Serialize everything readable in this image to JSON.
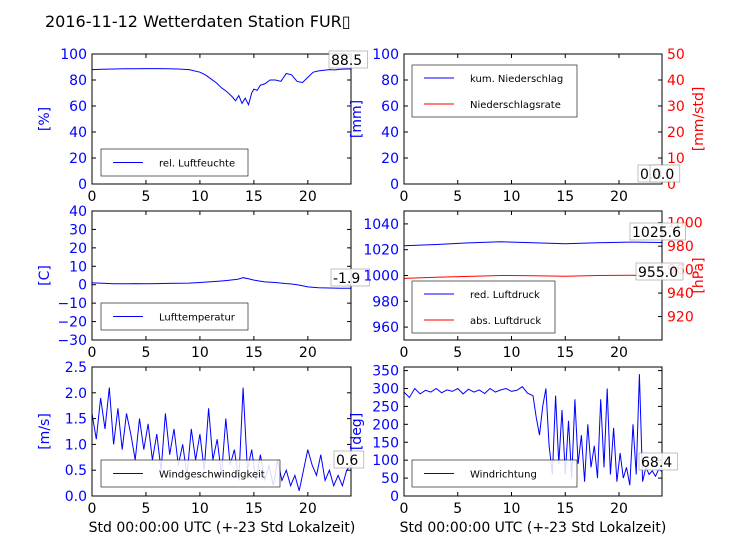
{
  "figure": {
    "title": "2016-11-12 Wetterdaten Station FUR▯",
    "xlabel": "Std 00:00:00 UTC (+-23 Std Lokalzeit)"
  },
  "colors": {
    "primary": "#0000ff",
    "secondary": "#ff0000",
    "axis": "#000000",
    "box_edge": "#999999"
  },
  "chart_data": [
    {
      "id": "humidity",
      "type": "line",
      "xlim": [
        0,
        24
      ],
      "ylim": [
        0,
        100
      ],
      "xticks": [
        "0",
        "5",
        "10",
        "15",
        "20"
      ],
      "yticks": [
        "0",
        "20",
        "40",
        "60",
        "80",
        "100"
      ],
      "ylabel": "[%]",
      "series": [
        {
          "name": "rel. Luftfeuchte",
          "color": "#0000ff",
          "x": [
            0,
            1,
            2,
            3,
            4,
            5,
            6,
            7,
            8,
            9,
            10,
            10.5,
            11,
            11.5,
            12,
            12.5,
            13,
            13.3,
            13.6,
            13.9,
            14.2,
            14.5,
            14.8,
            15,
            15.3,
            15.6,
            16,
            16.5,
            17,
            17.5,
            18,
            18.5,
            19,
            19.5,
            20,
            20.5,
            21,
            21.5,
            22,
            22.5,
            23,
            23.5,
            24
          ],
          "y": [
            88,
            88.3,
            88.5,
            88.6,
            88.7,
            88.8,
            88.8,
            88.7,
            88.5,
            88,
            86,
            84,
            81,
            78,
            74,
            71,
            67,
            64,
            68,
            62,
            66,
            61,
            70,
            73,
            72,
            76,
            77,
            80,
            80,
            79,
            85,
            84,
            79,
            78,
            82,
            86,
            87,
            87.5,
            88,
            87.8,
            88.3,
            88.5,
            88.5
          ]
        }
      ],
      "value_label": "88.5",
      "legend_position": "lower-left"
    },
    {
      "id": "precipitation",
      "type": "line",
      "xlim": [
        0,
        24
      ],
      "ylim": [
        0,
        100
      ],
      "y2lim": [
        0,
        50
      ],
      "xticks": [
        "0",
        "5",
        "10",
        "15",
        "20"
      ],
      "yticks": [
        "0",
        "20",
        "40",
        "60",
        "80",
        "100"
      ],
      "y2ticks": [
        "0",
        "10",
        "20",
        "30",
        "40",
        "50"
      ],
      "ylabel": "[mm]",
      "y2label": "[mm/std]",
      "series": [
        {
          "name": "kum. Niederschlag",
          "color": "#0000ff",
          "axis": "left",
          "x": [
            0,
            24
          ],
          "y": [
            0,
            0
          ]
        },
        {
          "name": "Niederschlagsrate",
          "color": "#ff0000",
          "axis": "right",
          "x": [
            0,
            24
          ],
          "y": [
            0,
            0
          ]
        }
      ],
      "value_labels": [
        "0.0",
        "0.0"
      ],
      "legend_position": "upper-left"
    },
    {
      "id": "temperature",
      "type": "line",
      "xlim": [
        0,
        24
      ],
      "ylim": [
        -30,
        40
      ],
      "xticks": [
        "0",
        "5",
        "10",
        "15",
        "20"
      ],
      "yticks": [
        "−30",
        "−20",
        "−10",
        "0",
        "10",
        "20",
        "30",
        "40"
      ],
      "ylabel": "[C]",
      "series": [
        {
          "name": "Lufttemperatur",
          "color": "#0000ff",
          "x": [
            0,
            1,
            2,
            3,
            4,
            5,
            6,
            7,
            8,
            9,
            10,
            11,
            12,
            12.5,
            13,
            13.5,
            14,
            14.5,
            15,
            15.5,
            16,
            17,
            18,
            18.5,
            19,
            19.5,
            20,
            21,
            22,
            23,
            24
          ],
          "y": [
            1,
            0.8,
            0.5,
            0.5,
            0.6,
            0.5,
            0.6,
            0.7,
            0.8,
            0.9,
            1.2,
            1.6,
            2.0,
            2.3,
            2.6,
            3.0,
            3.8,
            3.2,
            2.5,
            2.0,
            1.5,
            1.2,
            0.6,
            0.4,
            0,
            -0.6,
            -1.2,
            -1.6,
            -1.8,
            -1.9,
            -1.9
          ]
        }
      ],
      "value_label": "-1.9",
      "legend_position": "lower-left"
    },
    {
      "id": "pressure",
      "type": "line",
      "xlim": [
        0,
        24
      ],
      "ylim": [
        950,
        1050
      ],
      "y2lim": [
        900,
        1010
      ],
      "xticks": [
        "0",
        "5",
        "10",
        "15",
        "20"
      ],
      "yticks": [
        "960",
        "980",
        "1000",
        "1020",
        "1040"
      ],
      "y2ticks": [
        "920",
        "940",
        "960",
        "980",
        "1000"
      ],
      "y2label": "[hPa]",
      "series": [
        {
          "name": "red. Luftdruck",
          "color": "#0000ff",
          "axis": "left",
          "x": [
            0,
            3,
            6,
            9,
            12,
            15,
            18,
            21,
            24
          ],
          "y": [
            1023,
            1024,
            1025.3,
            1026.1,
            1025.4,
            1024.6,
            1025.4,
            1025.9,
            1025.6
          ]
        },
        {
          "name": "abs. Luftdruck",
          "color": "#ff0000",
          "axis": "right",
          "x": [
            0,
            3,
            6,
            9,
            12,
            15,
            18,
            21,
            24
          ],
          "y": [
            952.5,
            953.5,
            954.2,
            955.0,
            954.8,
            954.4,
            955.0,
            955.2,
            955.0
          ]
        }
      ],
      "value_labels": [
        "1025.6",
        "955.0"
      ],
      "legend_position": "lower-left"
    },
    {
      "id": "wind_speed",
      "type": "line",
      "xlim": [
        0,
        24
      ],
      "ylim": [
        0,
        2.5
      ],
      "xticks": [
        "0",
        "5",
        "10",
        "15",
        "20"
      ],
      "yticks": [
        "0.0",
        "0.5",
        "1.0",
        "1.5",
        "2.0",
        "2.5"
      ],
      "ylabel": "[m/s]",
      "series": [
        {
          "name": "Windgeschwindigkeit",
          "color": "#0000ff",
          "x": [
            0,
            0.4,
            0.8,
            1.2,
            1.6,
            2.0,
            2.4,
            2.8,
            3.2,
            3.6,
            4.0,
            4.4,
            4.8,
            5.2,
            5.6,
            6.0,
            6.4,
            6.8,
            7.2,
            7.6,
            8.0,
            8.4,
            8.8,
            9.2,
            9.6,
            10.0,
            10.4,
            10.8,
            11.2,
            11.6,
            12.0,
            12.4,
            12.8,
            13.2,
            13.6,
            14.0,
            14.4,
            14.8,
            15.2,
            15.6,
            16.0,
            16.4,
            16.8,
            17.2,
            17.6,
            18.0,
            18.4,
            18.8,
            19.2,
            19.6,
            20.0,
            20.4,
            20.8,
            21.2,
            21.6,
            22.0,
            22.4,
            22.8,
            23.2,
            23.6,
            24.0
          ],
          "y": [
            1.6,
            1.1,
            1.9,
            1.3,
            2.1,
            1.0,
            1.7,
            0.9,
            1.6,
            1.2,
            0.7,
            1.5,
            0.9,
            1.4,
            0.7,
            1.2,
            0.5,
            1.6,
            0.8,
            1.3,
            0.6,
            1.0,
            0.4,
            1.3,
            0.7,
            1.2,
            0.5,
            1.7,
            0.7,
            1.1,
            0.4,
            1.5,
            0.6,
            0.9,
            0.3,
            2.1,
            0.5,
            0.9,
            0.3,
            0.8,
            0.3,
            0.6,
            0.2,
            0.7,
            0.3,
            0.5,
            0.2,
            0.4,
            0.1,
            0.5,
            0.9,
            0.6,
            0.4,
            0.8,
            0.3,
            0.5,
            0.2,
            0.4,
            0.2,
            0.5,
            0.6
          ]
        }
      ],
      "value_label": "0.6",
      "legend_position": "lower-left"
    },
    {
      "id": "wind_direction",
      "type": "line",
      "xlim": [
        0,
        24
      ],
      "ylim": [
        0,
        360
      ],
      "xticks": [
        "0",
        "5",
        "10",
        "15",
        "20"
      ],
      "yticks": [
        "0",
        "50",
        "100",
        "150",
        "200",
        "250",
        "300",
        "350"
      ],
      "ylabel": "[deg]",
      "series": [
        {
          "name": "Windrichtung",
          "color": "#0000ff",
          "x": [
            0,
            0.5,
            1.0,
            1.5,
            2.0,
            2.5,
            3.0,
            3.5,
            4.0,
            4.5,
            5.0,
            5.5,
            6.0,
            6.5,
            7.0,
            7.5,
            8.0,
            8.5,
            9.0,
            9.5,
            10.0,
            10.5,
            11.0,
            11.5,
            12.0,
            12.3,
            12.6,
            12.9,
            13.2,
            13.5,
            13.8,
            14.1,
            14.4,
            14.7,
            15.0,
            15.3,
            15.6,
            15.9,
            16.2,
            16.5,
            16.8,
            17.1,
            17.4,
            17.7,
            18.0,
            18.3,
            18.6,
            18.9,
            19.2,
            19.5,
            19.8,
            20.1,
            20.4,
            20.7,
            21.0,
            21.3,
            21.6,
            21.9,
            22.2,
            22.5,
            22.8,
            23.1,
            23.4,
            23.7,
            24.0
          ],
          "y": [
            290,
            275,
            300,
            285,
            295,
            290,
            300,
            288,
            296,
            292,
            300,
            285,
            298,
            290,
            296,
            286,
            300,
            290,
            296,
            300,
            292,
            295,
            305,
            287,
            280,
            220,
            170,
            250,
            300,
            140,
            60,
            280,
            90,
            240,
            60,
            210,
            50,
            270,
            90,
            170,
            40,
            200,
            80,
            140,
            50,
            270,
            80,
            300,
            60,
            190,
            40,
            120,
            50,
            80,
            30,
            200,
            60,
            340,
            40,
            80,
            60,
            70,
            55,
            75,
            68
          ]
        }
      ],
      "value_label": "68.4",
      "legend_position": "lower-left"
    }
  ]
}
